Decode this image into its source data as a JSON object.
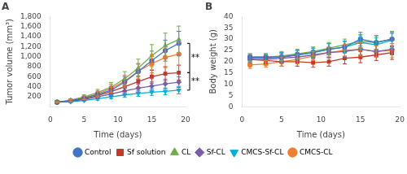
{
  "chart_data": [
    {
      "type": "line",
      "title": "A",
      "xlabel": "Time (days)",
      "ylabel": "Tumor volume (mm³)",
      "x": [
        1,
        3,
        5,
        7,
        9,
        11,
        13,
        15,
        17,
        19
      ],
      "series": [
        {
          "name": "Control",
          "color": "#4472c4",
          "marker": "circle",
          "values": [
            90,
            120,
            170,
            240,
            330,
            490,
            700,
            920,
            1120,
            1265
          ],
          "errors": [
            12,
            22,
            35,
            55,
            80,
            110,
            150,
            190,
            210,
            240
          ]
        },
        {
          "name": "Sf solution",
          "color": "#c0392b",
          "marker": "square",
          "values": [
            90,
            115,
            160,
            220,
            300,
            400,
            500,
            600,
            660,
            680
          ],
          "errors": [
            12,
            20,
            28,
            45,
            65,
            90,
            110,
            130,
            140,
            150
          ]
        },
        {
          "name": "CL",
          "color": "#70ad47",
          "marker": "triangle_up",
          "values": [
            90,
            130,
            195,
            280,
            390,
            560,
            770,
            1020,
            1220,
            1340
          ],
          "errors": [
            12,
            25,
            40,
            65,
            95,
            140,
            180,
            220,
            250,
            270
          ]
        },
        {
          "name": "Sf-CL",
          "color": "#7b5ea7",
          "marker": "diamond",
          "values": [
            90,
            110,
            145,
            195,
            255,
            315,
            370,
            410,
            455,
            490
          ],
          "errors": [
            12,
            16,
            24,
            38,
            52,
            65,
            75,
            85,
            95,
            105
          ]
        },
        {
          "name": "CMCS-Sf-CL",
          "color": "#00b0d8",
          "marker": "triangle_down",
          "values": [
            90,
            100,
            125,
            158,
            195,
            235,
            265,
            290,
            305,
            330
          ],
          "errors": [
            12,
            13,
            20,
            28,
            38,
            48,
            58,
            65,
            68,
            75
          ]
        },
        {
          "name": "CMCS-CL",
          "color": "#ed7d31",
          "marker": "circle",
          "values": [
            90,
            120,
            178,
            255,
            365,
            510,
            710,
            860,
            985,
            1050
          ],
          "errors": [
            12,
            22,
            35,
            60,
            85,
            120,
            155,
            185,
            205,
            225
          ]
        }
      ],
      "xlim": [
        0,
        20
      ],
      "xticks": [
        0,
        5,
        10,
        15,
        20
      ],
      "ylim": [
        0,
        1800
      ],
      "yticks": [
        {
          "value": 0,
          "label": null
        },
        200,
        400,
        600,
        800,
        {
          "value": 1000,
          "label": "1,000"
        },
        {
          "value": 1200,
          "label": "1,200"
        },
        {
          "value": 1400,
          "label": "1,400"
        },
        {
          "value": 1600,
          "label": "1,600"
        },
        {
          "value": 1800,
          "label": "1,800"
        }
      ],
      "grid": false,
      "legend": "bottom",
      "annotations": [
        {
          "text": "**",
          "y": 972,
          "bracket": [
            680,
            1265
          ]
        },
        {
          "text": "**",
          "y": 505,
          "bracket": [
            330,
            680
          ]
        }
      ]
    },
    {
      "type": "line",
      "title": "B",
      "xlabel": "Time (days)",
      "ylabel": "Body weight (g)",
      "x": [
        1,
        3,
        5,
        7,
        9,
        11,
        13,
        15,
        17,
        19
      ],
      "series": [
        {
          "name": "Control",
          "color": "#4472c4",
          "marker": "circle",
          "values": [
            22.0,
            22.0,
            22.0,
            23.0,
            24.0,
            25.5,
            26.5,
            30.0,
            28.5,
            30.0
          ],
          "errors": [
            1.5,
            1.5,
            2.0,
            2.0,
            2.0,
            2.5,
            2.5,
            3.0,
            3.0,
            3.0
          ]
        },
        {
          "name": "Sf solution",
          "color": "#c0392b",
          "marker": "square",
          "values": [
            21.0,
            20.5,
            20.0,
            20.0,
            19.5,
            20.0,
            21.5,
            22.0,
            23.0,
            24.0
          ],
          "errors": [
            1.5,
            1.5,
            2.0,
            2.0,
            2.0,
            2.0,
            2.5,
            2.5,
            2.5,
            3.0
          ]
        },
        {
          "name": "CL",
          "color": "#70ad47",
          "marker": "triangle_up",
          "values": [
            22.0,
            22.0,
            22.5,
            23.5,
            24.5,
            26.0,
            27.5,
            29.0,
            28.5,
            30.0
          ],
          "errors": [
            1.5,
            1.5,
            2.0,
            2.0,
            2.0,
            2.5,
            2.5,
            3.0,
            3.0,
            3.5
          ]
        },
        {
          "name": "Sf-CL",
          "color": "#7b5ea7",
          "marker": "diamond",
          "values": [
            21.0,
            21.0,
            21.5,
            22.0,
            23.0,
            24.0,
            24.5,
            25.5,
            24.5,
            25.5
          ],
          "errors": [
            1.5,
            1.5,
            2.0,
            2.0,
            2.0,
            2.0,
            2.5,
            2.5,
            2.5,
            2.5
          ]
        },
        {
          "name": "CMCS-Sf-CL",
          "color": "#00b0d8",
          "marker": "triangle_down",
          "values": [
            21.5,
            21.5,
            22.0,
            23.0,
            24.0,
            25.5,
            26.5,
            28.5,
            27.5,
            29.5
          ],
          "errors": [
            1.5,
            1.5,
            2.0,
            2.0,
            2.0,
            2.5,
            2.5,
            3.0,
            3.0,
            3.0
          ]
        },
        {
          "name": "CMCS-CL",
          "color": "#ed7d31",
          "marker": "circle",
          "values": [
            18.5,
            19.0,
            20.0,
            21.0,
            22.5,
            24.0,
            25.0,
            25.5,
            24.5,
            25.0
          ],
          "errors": [
            1.5,
            1.5,
            2.0,
            2.0,
            2.0,
            2.5,
            2.5,
            3.0,
            2.5,
            3.0
          ]
        }
      ],
      "xlim": [
        0,
        20
      ],
      "xticks": [
        0,
        5,
        10,
        15,
        20
      ],
      "ylim": [
        0,
        40
      ],
      "yticks": [
        0,
        5,
        10,
        15,
        20,
        25,
        30,
        35,
        40
      ],
      "grid": false,
      "legend": "bottom"
    }
  ]
}
